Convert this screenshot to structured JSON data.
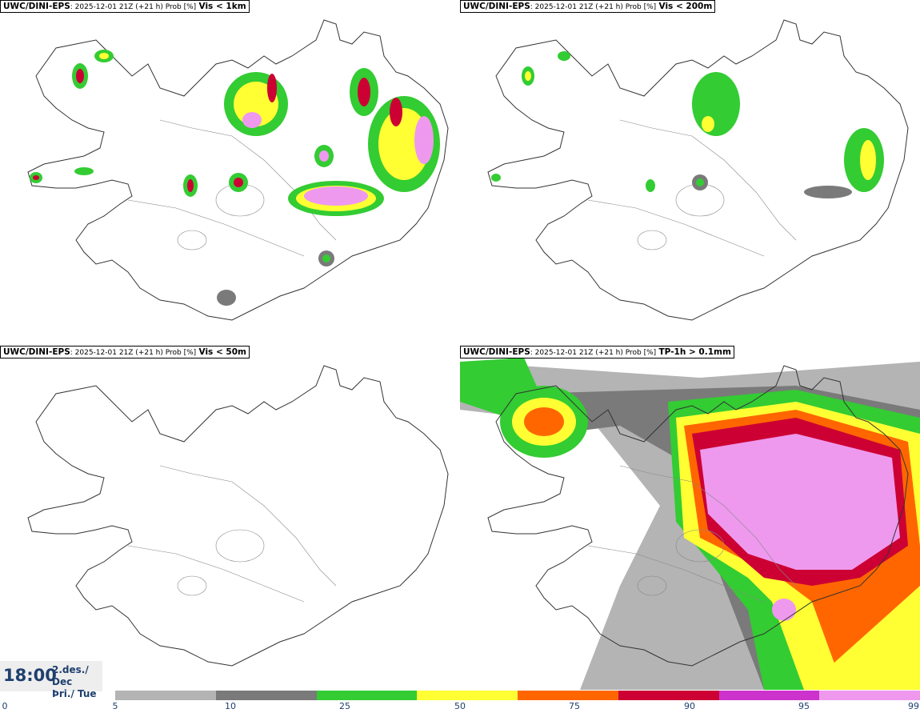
{
  "panels": [
    {
      "model": "UWC/DINI-EPS",
      "meta": ": 2025-12-01 21Z (+21 h) Prob [%]",
      "variable": "Vis < 1km"
    },
    {
      "model": "UWC/DINI-EPS",
      "meta": ": 2025-12-01 21Z (+21 h) Prob [%]",
      "variable": "Vis < 200m"
    },
    {
      "model": "UWC/DINI-EPS",
      "meta": ": 2025-12-01 21Z (+21 h) Prob [%]",
      "variable": "Vis < 50m"
    },
    {
      "model": "UWC/DINI-EPS",
      "meta": ": 2025-12-01 21Z (+21 h) Prob [%]",
      "variable": "TP-1h > 0.1mm"
    }
  ],
  "valid_time": {
    "time": "18:00",
    "date_line1": "2.des./ Dec",
    "date_line2": "Þri./ Tue"
  },
  "colorbar": {
    "colors": [
      "#b4b4b4",
      "#7a7a7a",
      "#33cc33",
      "#ffff33",
      "#ff6600",
      "#cc0033",
      "#cc33cc",
      "#ee99ee"
    ],
    "ticks": [
      "0",
      "5",
      "10",
      "25",
      "50",
      "75",
      "90",
      "95",
      "99"
    ]
  }
}
